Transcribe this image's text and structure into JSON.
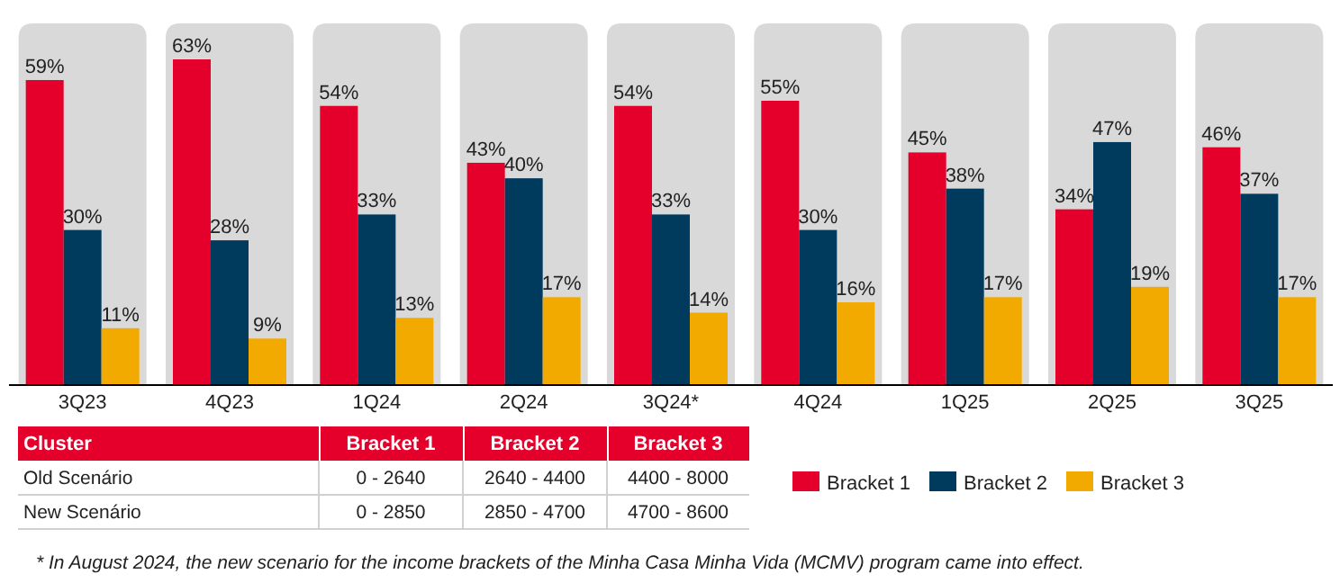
{
  "chart_data": [
    {
      "type": "bar",
      "categories": [
        "3Q23",
        "4Q23",
        "1Q24",
        "2Q24",
        "3Q24*",
        "4Q24",
        "1Q25",
        "2Q25",
        "3Q25"
      ],
      "series": [
        {
          "name": "Bracket 1",
          "color": "#e4002b",
          "values": [
            59,
            63,
            54,
            43,
            54,
            55,
            45,
            34,
            46
          ],
          "value_labels": [
            "59%",
            "63%",
            "54%",
            "43%",
            "54%",
            "55%",
            "45%",
            "34%",
            "46%"
          ]
        },
        {
          "name": "Bracket 2",
          "color": "#003a5d",
          "values": [
            30,
            28,
            33,
            40,
            33,
            30,
            38,
            47,
            37
          ],
          "value_labels": [
            "30%",
            "28%",
            "33%",
            "40%",
            "33%",
            "30%",
            "38%",
            "47%",
            "37%"
          ]
        },
        {
          "name": "Bracket 3",
          "color": "#f2a900",
          "values": [
            11,
            9,
            13,
            17,
            14,
            16,
            17,
            19,
            17
          ],
          "value_labels": [
            "11%",
            "9%",
            "13%",
            "17%",
            "14%",
            "16%",
            "17%",
            "19%",
            "17%"
          ]
        }
      ],
      "bands": [
        {
          "axis": "x",
          "from": "3Q23",
          "to": "3Q23",
          "color": "#d9d9d9"
        },
        {
          "axis": "x",
          "from": "4Q23",
          "to": "4Q23",
          "color": "#d9d9d9"
        },
        {
          "axis": "x",
          "from": "1Q24",
          "to": "1Q24",
          "color": "#d9d9d9"
        },
        {
          "axis": "x",
          "from": "2Q24",
          "to": "2Q24",
          "color": "#d9d9d9"
        },
        {
          "axis": "x",
          "from": "3Q24*",
          "to": "3Q24*",
          "color": "#d9d9d9"
        },
        {
          "axis": "x",
          "from": "4Q24",
          "to": "4Q24",
          "color": "#d9d9d9"
        },
        {
          "axis": "x",
          "from": "1Q25",
          "to": "1Q25",
          "color": "#d9d9d9"
        },
        {
          "axis": "x",
          "from": "2Q25",
          "to": "2Q25",
          "color": "#d9d9d9"
        },
        {
          "axis": "x",
          "from": "3Q25",
          "to": "3Q25",
          "color": "#d9d9d9"
        }
      ],
      "legend": "bottom right",
      "grid": false,
      "annotations": [
        "* In August 2024, the new scenario for the income brackets of the Minha Casa Minha Vida (MCMV) program came into effect."
      ]
    },
    {
      "type": "other",
      "categories": [
        "Cluster",
        "Bracket 1",
        "Bracket 2",
        "Bracket 3"
      ],
      "y_categories": [
        "Old Scenário",
        "New Scenário"
      ],
      "cell_labels": [
        [
          "0 - 2640",
          "2640 - 4400",
          "4400 - 8000"
        ],
        [
          "0 - 2850",
          "2850 - 4700",
          "4700 - 8600"
        ]
      ]
    }
  ]
}
